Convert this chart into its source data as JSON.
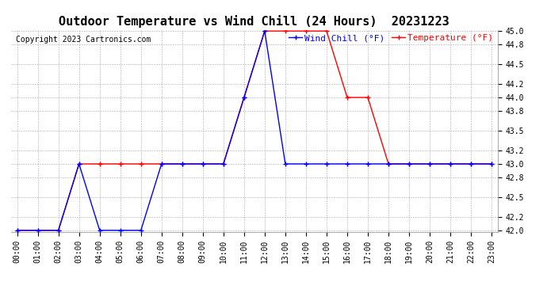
{
  "title": "Outdoor Temperature vs Wind Chill (24 Hours)  20231223",
  "copyright": "Copyright 2023 Cartronics.com",
  "legend_wind_chill": "Wind Chill (°F)",
  "legend_temperature": "Temperature (°F)",
  "hours": [
    0,
    1,
    2,
    3,
    4,
    5,
    6,
    7,
    8,
    9,
    10,
    11,
    12,
    13,
    14,
    15,
    16,
    17,
    18,
    19,
    20,
    21,
    22,
    23
  ],
  "temperature": [
    42.0,
    42.0,
    42.0,
    43.0,
    43.0,
    43.0,
    43.0,
    43.0,
    43.0,
    43.0,
    43.0,
    44.0,
    45.0,
    45.0,
    45.0,
    45.0,
    44.0,
    44.0,
    43.0,
    43.0,
    43.0,
    43.0,
    43.0,
    43.0
  ],
  "wind_chill": [
    42.0,
    42.0,
    42.0,
    43.0,
    42.0,
    42.0,
    42.0,
    43.0,
    43.0,
    43.0,
    43.0,
    44.0,
    45.0,
    43.0,
    43.0,
    43.0,
    43.0,
    43.0,
    43.0,
    43.0,
    43.0,
    43.0,
    43.0,
    43.0
  ],
  "wind_chill_color": "#0000ff",
  "temperature_color": "#ff0000",
  "dark_color": "#000000",
  "ylim_min": 42.0,
  "ylim_max": 45.0,
  "background_color": "#ffffff",
  "grid_color": "#aaaaaa",
  "title_fontsize": 11,
  "axis_fontsize": 7,
  "copyright_fontsize": 7,
  "legend_fontsize": 8
}
